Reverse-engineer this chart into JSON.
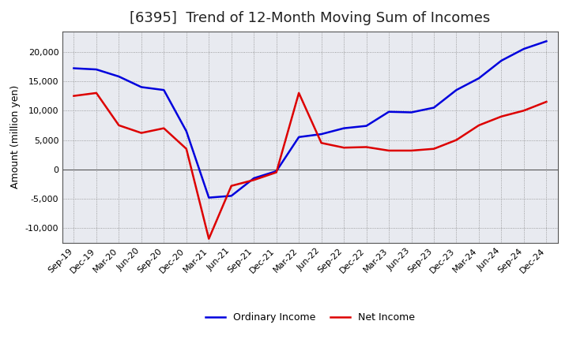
{
  "title": "[6395]  Trend of 12-Month Moving Sum of Incomes",
  "ylabel": "Amount (million yen)",
  "x_labels": [
    "Sep-19",
    "Dec-19",
    "Mar-20",
    "Jun-20",
    "Sep-20",
    "Dec-20",
    "Mar-21",
    "Jun-21",
    "Sep-21",
    "Dec-21",
    "Mar-22",
    "Jun-22",
    "Sep-22",
    "Dec-22",
    "Mar-23",
    "Jun-23",
    "Sep-23",
    "Dec-23",
    "Mar-24",
    "Jun-24",
    "Sep-24",
    "Dec-24"
  ],
  "ordinary_income": [
    17200,
    17000,
    15800,
    14000,
    13500,
    6500,
    -4800,
    -4500,
    -1500,
    -300,
    5500,
    6000,
    7000,
    7400,
    9800,
    9700,
    10500,
    13500,
    15500,
    18500,
    20500,
    21800
  ],
  "net_income": [
    12500,
    13000,
    7500,
    6200,
    7000,
    3500,
    -11800,
    -2800,
    -1800,
    -500,
    13000,
    4500,
    3700,
    3800,
    3200,
    3200,
    3500,
    5000,
    7500,
    9000,
    10000,
    11500
  ],
  "ordinary_color": "#0000dd",
  "net_color": "#dd0000",
  "ylim": [
    -12500,
    23500
  ],
  "yticks": [
    -10000,
    -5000,
    0,
    5000,
    10000,
    15000,
    20000
  ],
  "bg_color": "#ffffff",
  "plot_bg_color": "#e8eaf0",
  "grid_color": "#aaaaaa",
  "title_fontsize": 13,
  "label_fontsize": 9,
  "tick_fontsize": 8,
  "legend_fontsize": 9,
  "line_width": 1.8
}
